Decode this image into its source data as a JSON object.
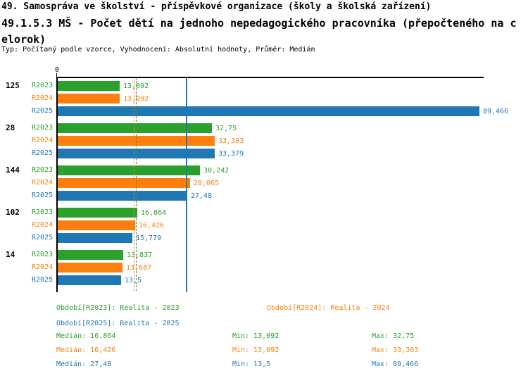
{
  "header": {
    "title_line1": "49. Samospráva ve školství - příspěvkové organizace (školy a školská zařízení)",
    "title_line2": "49.1.5.3 MŠ - Počet dětí na jednoho nepedagogického pracovníka (přepočteného na c",
    "title_line3": "elorok)",
    "meta_line": "Typ: Počítaný podle vzorce, Vyhodnocení: Absolutní hodnoty, Průměr: Medián"
  },
  "chart_data": {
    "type": "bar",
    "orientation": "horizontal",
    "title": "49.1.5.3 MŠ - Počet dětí na jednoho nepedagogického pracovníka (přepočteného na celorok)",
    "x_origin_tick_label": "0",
    "xlim": [
      0,
      90.5
    ],
    "grid": false,
    "legend_position": "bottom",
    "categories": [
      "125",
      "28",
      "144",
      "102",
      "14"
    ],
    "series": [
      {
        "name": "R2023",
        "color": "#2ca02c",
        "values": [
          13.092,
          32.75,
          30.242,
          16.864,
          13.837
        ],
        "value_labels": [
          "13,092",
          "32,75",
          "30,242",
          "16,864",
          "13,837"
        ],
        "median": 16.864,
        "median_line_style": "dashed"
      },
      {
        "name": "R2024",
        "color": "#ff7f0e",
        "values": [
          13.092,
          33.303,
          28.065,
          16.426,
          13.687
        ],
        "value_labels": [
          "13,092",
          "33,303",
          "28,065",
          "16,426",
          "13,687"
        ],
        "median": 16.426,
        "median_line_style": "dashed"
      },
      {
        "name": "R2025",
        "color": "#1f77b4",
        "values": [
          89.466,
          33.379,
          27.48,
          15.779,
          13.5
        ],
        "value_labels": [
          "89,466",
          "33,379",
          "27,48",
          "15,779",
          "13,5"
        ],
        "median": 27.48,
        "median_line_style": "solid"
      }
    ]
  },
  "legend": {
    "r2023": "Období[R2023]: Realita - 2023",
    "r2024": "Období[R2024]: Realita - 2024",
    "r2025": "Období[R2025]: Realita - 2025"
  },
  "stats": {
    "rows": [
      {
        "series": "R2023",
        "color": "#2ca02c",
        "median": "Medián: 16,864",
        "min": "Min: 13,092",
        "max": "Max: 32,75"
      },
      {
        "series": "R2024",
        "color": "#ff7f0e",
        "median": "Medián: 16,426",
        "min": "Min: 13,092",
        "max": "Max: 33,303"
      },
      {
        "series": "R2025",
        "color": "#1f77b4",
        "median": "Medián: 27,48",
        "min": "Min: 13,5",
        "max": "Max: 89,466"
      }
    ]
  },
  "colors": {
    "r2023_green": "#2ca02c",
    "r2024_orange": "#ff7f0e",
    "r2025_blue": "#1f77b4",
    "axis_black": "#000000",
    "background": "#ffffff"
  }
}
